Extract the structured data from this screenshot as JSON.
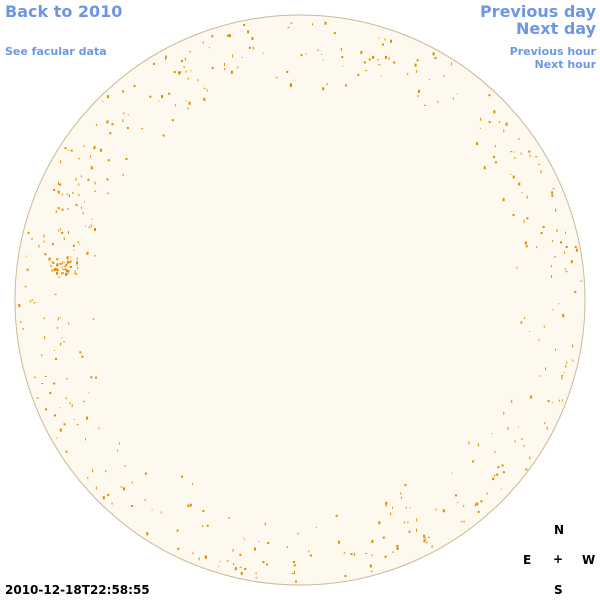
{
  "header": {
    "back_link": "Back to 2010",
    "facular_link": "See facular data",
    "previous_day": "Previous day",
    "next_day": "Next day",
    "previous_hour": "Previous hour",
    "next_hour": "Next hour"
  },
  "timestamp": "2010-12-18T22:58:55",
  "compass": {
    "north": "N",
    "east": "E",
    "center": "+",
    "west": "W",
    "south": "S"
  }
}
